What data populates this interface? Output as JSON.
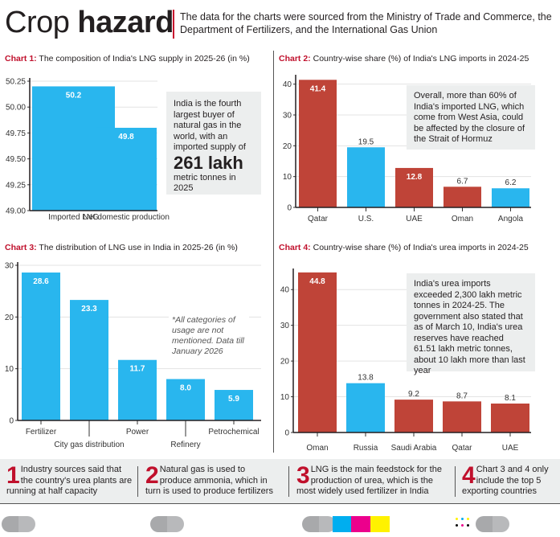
{
  "header": {
    "title_light": "Crop ",
    "title_bold": "hazard",
    "source_note": "The data for the charts were sourced from the Ministry of Trade and Commerce, the Department of Fertilizers, and the International Gas Union"
  },
  "colors": {
    "blue": "#29b6ee",
    "red": "#bf4438",
    "accent_red": "#c0102c",
    "note_bg": "#eceeee"
  },
  "chart_data": [
    {
      "type": "bar",
      "label": "Chart 1:",
      "title": "The composition of India's LNG supply in 2025-26 (in %)",
      "categories": [
        "Imported LNG",
        "Net domestic production"
      ],
      "values": [
        50.2,
        49.8
      ],
      "data_labels": [
        "50.2",
        "49.8"
      ],
      "bar_colors": [
        "blue",
        "blue"
      ],
      "ylim": [
        49.0,
        50.25
      ],
      "yticks": [
        "49.00",
        "49.25",
        "49.50",
        "49.75",
        "50.00",
        "50.25"
      ],
      "xlabel": "",
      "ylabel": "",
      "grid": true,
      "annotation": {
        "text_before": "India is the fourth largest buyer of natural gas in the world, with an imported supply of",
        "highlight": "261 lakh",
        "text_after": "metric tonnes in 2025"
      }
    },
    {
      "type": "bar",
      "label": "Chart 2:",
      "title": "Country-wise share (%) of India's LNG imports in 2024-25",
      "categories": [
        "Qatar",
        "U.S.",
        "UAE",
        "Oman",
        "Angola"
      ],
      "values": [
        41.4,
        19.5,
        12.8,
        6.7,
        6.2
      ],
      "data_labels": [
        "41.4",
        "19.5",
        "12.8",
        "6.7",
        "6.2"
      ],
      "bar_colors": [
        "red",
        "blue",
        "red",
        "red",
        "blue"
      ],
      "ylim": [
        0,
        42
      ],
      "yticks": [
        "0",
        "10",
        "20",
        "30",
        "40"
      ],
      "xlabel": "",
      "ylabel": "",
      "grid": true,
      "annotation": {
        "text": "Overall, more than 60% of India's imported LNG, which come from West Asia, could be affected by the closure of the Strait of Hormuz"
      }
    },
    {
      "type": "bar",
      "label": "Chart 3:",
      "title": "The distribution of LNG use in India in 2025-26 (in %)",
      "categories": [
        "Fertilizer",
        "City gas distribution",
        "Power",
        "Refinery",
        "Petrochemical"
      ],
      "values": [
        28.6,
        23.3,
        11.7,
        8.0,
        5.9
      ],
      "data_labels": [
        "28.6",
        "23.3",
        "11.7",
        "8.0",
        "5.9"
      ],
      "bar_colors": [
        "blue",
        "blue",
        "blue",
        "blue",
        "blue"
      ],
      "ylim": [
        0,
        30
      ],
      "yticks": [
        "0",
        "10",
        "20",
        "30"
      ],
      "xlabel": "",
      "ylabel": "",
      "grid": true,
      "annotation": {
        "text": "*All categories of usage are not mentioned. Data till January 2026"
      }
    },
    {
      "type": "bar",
      "label": "Chart 4:",
      "title": "Country-wise share (%) of India's urea imports in 2024-25",
      "categories": [
        "Oman",
        "Russia",
        "Saudi Arabia",
        "Qatar",
        "UAE"
      ],
      "values": [
        44.8,
        13.8,
        9.2,
        8.7,
        8.1
      ],
      "data_labels": [
        "44.8",
        "13.8",
        "9.2",
        "8.7",
        "8.1"
      ],
      "bar_colors": [
        "red",
        "blue",
        "red",
        "red",
        "red"
      ],
      "ylim": [
        0,
        45
      ],
      "yticks": [
        "0",
        "10",
        "20",
        "30",
        "40"
      ],
      "xlabel": "",
      "ylabel": "",
      "grid": true,
      "annotation": {
        "text": "India's urea imports exceeded 2,300 lakh metric tonnes in 2024-25. The government also stated that as of March 10, India's urea reserves have reached 61.51 lakh metric tonnes, about 10 lakh more than last year"
      }
    }
  ],
  "facts": [
    {
      "number": "1",
      "text": "Industry sources said that the country's urea plants are running at half capacity"
    },
    {
      "number": "2",
      "text": "Natural gas is used to produce ammonia, which in turn is used to produce fertilizers"
    },
    {
      "number": "3",
      "text": "LNG is the main feedstock for the production of urea, which is the most widely used fertilizer in India"
    },
    {
      "number": "4",
      "text": "Chart 3 and 4 only include the top 5 exporting countries"
    }
  ]
}
